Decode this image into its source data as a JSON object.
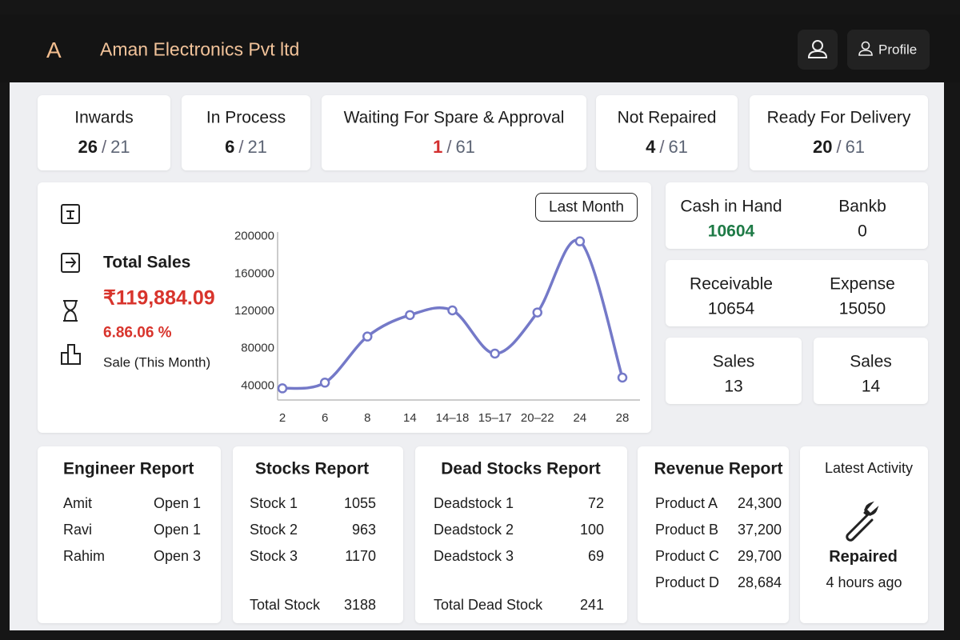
{
  "header": {
    "logo": "A",
    "title": "Aman Electronics Pvt ltd",
    "profile": "Profile"
  },
  "status_separator": "/",
  "status_cards": [
    {
      "label": "Inwards",
      "value": 26,
      "total": 21
    },
    {
      "label": "In Process",
      "value": 6,
      "total": 21
    },
    {
      "label": "Waiting For Spare & Approval",
      "value": 1,
      "total": 61,
      "value_color": "#d32f2f"
    },
    {
      "label": "Not Repaired",
      "value": 4,
      "total": 61
    },
    {
      "label": "Ready For Delivery",
      "value": 20,
      "total": 61
    }
  ],
  "sales": {
    "title": "Total Sales",
    "amount": "₹119,884.09",
    "growth": "6.86.06 %",
    "caption": "Sale (This Month)",
    "filter": "Last Month"
  },
  "chart_data": {
    "type": "line",
    "categories": [
      "2",
      "6",
      "8",
      "14",
      "14–18",
      "15–17",
      "20–22",
      "24",
      "28"
    ],
    "values": [
      36500,
      42600,
      92000,
      115000,
      120000,
      73700,
      117800,
      194000,
      48000
    ],
    "color": "#7479c8",
    "ylim": [
      24000,
      204000
    ],
    "yticks": [
      40000,
      80000,
      120000,
      160000,
      200000
    ]
  },
  "balance_cards": [
    [
      {
        "label": "Cash in Hand",
        "value": 10604,
        "color": "#1e7a46"
      },
      {
        "label": "Bankb",
        "value": 0
      }
    ],
    [
      {
        "label": "Receivable",
        "value": 10654
      },
      {
        "label": "Expense",
        "value": 15050
      }
    ],
    [
      {
        "label": "Sales",
        "value": 13
      }
    ],
    [
      {
        "label": "Sales",
        "value": 14
      }
    ]
  ],
  "reports": {
    "engineer": {
      "title": "Engineer Report",
      "rows": [
        [
          "Amit",
          "Open 1"
        ],
        [
          "Ravi",
          "Open 1"
        ],
        [
          "Rahim",
          "Open 3"
        ]
      ]
    },
    "stocks": {
      "title": "Stocks Report",
      "rows": [
        [
          "Stock 1",
          1055
        ],
        [
          "Stock 2",
          963
        ],
        [
          "Stock 3",
          1170
        ]
      ],
      "total_label": "Total Stock",
      "total": 3188
    },
    "dead_stocks": {
      "title": "Dead Stocks Report",
      "rows": [
        [
          "Deadstock 1",
          72
        ],
        [
          "Deadstock 2",
          100
        ],
        [
          "Deadstock 3",
          69
        ]
      ],
      "total_label": "Total Dead Stock",
      "total": 241
    },
    "revenue": {
      "title": "Revenue Report",
      "rows": [
        [
          "Product A",
          "24,300"
        ],
        [
          "Product B",
          "37,200"
        ],
        [
          "Product C",
          "29,700"
        ],
        [
          "Product D",
          "28,684"
        ]
      ]
    }
  },
  "activity": {
    "title": "Latest Activity",
    "status": "Repaired",
    "time": "4 hours ago"
  }
}
